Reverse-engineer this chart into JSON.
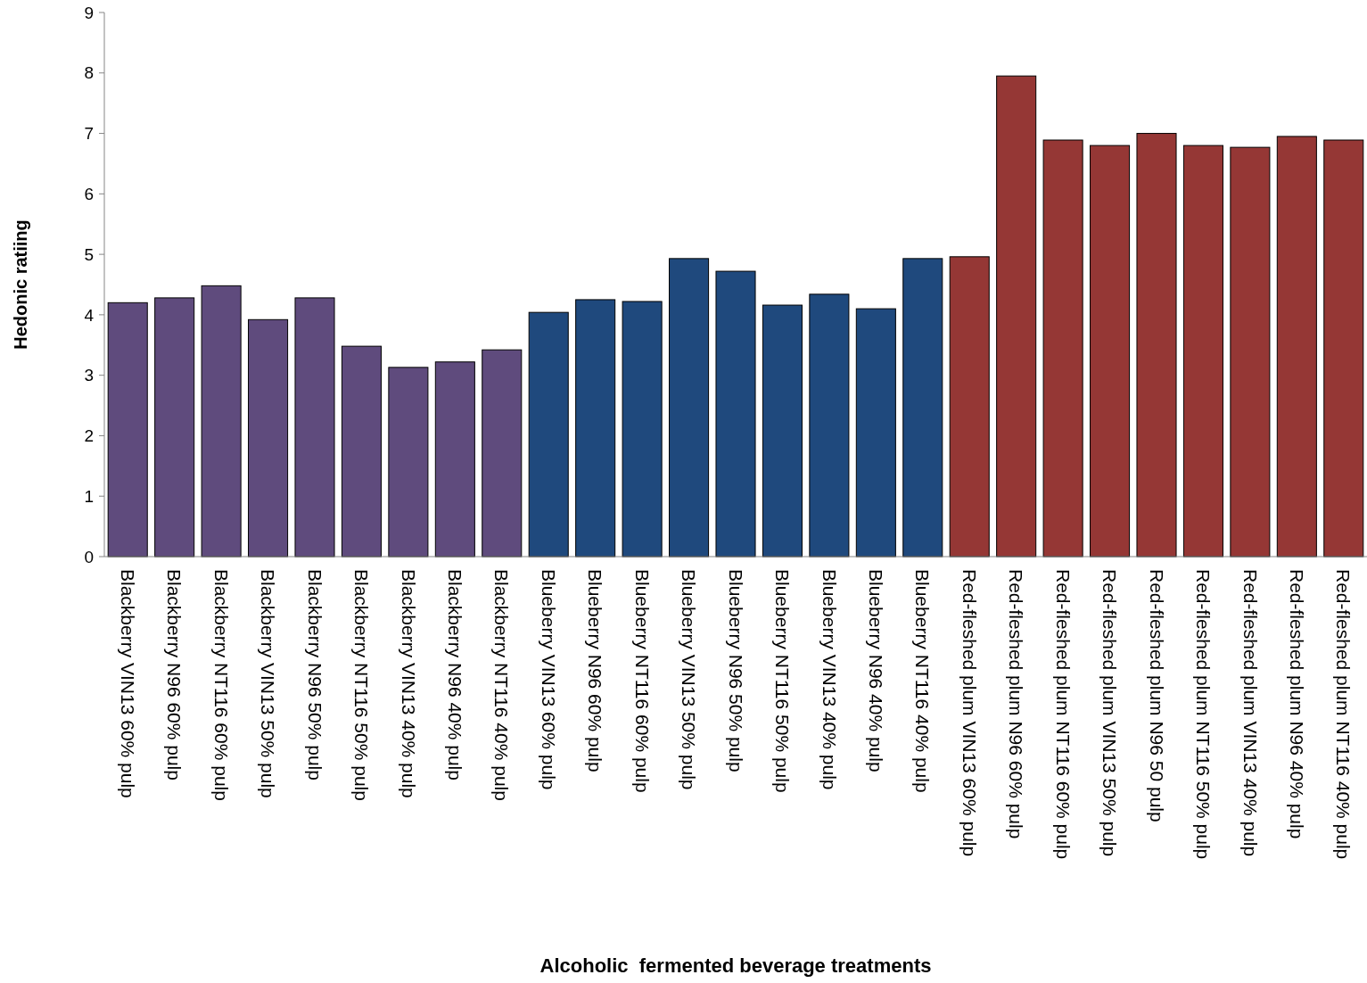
{
  "chart_data": {
    "type": "bar",
    "xlabel": "Alcoholic  fermented beverage treatments",
    "ylabel": "Hedonic ratiing",
    "categories": [
      "Blackberry VIN13 60% pulp",
      "Blackberry N96 60% pulp",
      "Blackberry NT116 60% pulp",
      "Blackberry VIN13 50% pulp",
      "Blackberry N96 50% pulp",
      "Blackberry NT116 50% pulp",
      "Blackberry VIN13 40% pulp",
      "Blackberry N96 40% pulp",
      "Blackberry NT116 40% pulp",
      "Blueberry VIN13 60% pulp",
      "Blueberry N96 60% pulp",
      "Blueberry NT116 60% pulp",
      "Blueberry VIN13 50% pulp",
      "Blueberry N96 50% pulp",
      "Blueberry NT116 50% pulp",
      "Blueberry VIN13 40% pulp",
      "Blueberry N96 40% pulp",
      "Blueberry NT116 40% pulp",
      "Red-fleshed plum VIN13 60% pulp",
      "Red-fleshed plum N96 60% pulp",
      "Red-fleshed plum NT116 60% pulp",
      "Red-fleshed plum VIN13 50% pulp",
      "Red-fleshed plum N96 50 pulp",
      "Red-fleshed plum NT116 50% pulp",
      "Red-fleshed plum VIN13 40% pulp",
      "Red-fleshed plum N96 40% pulp",
      "Red-fleshed plum NT116 40% pulp"
    ],
    "values": [
      4.2,
      4.28,
      4.48,
      3.92,
      4.28,
      3.48,
      3.13,
      3.22,
      3.42,
      4.04,
      4.25,
      4.22,
      4.93,
      4.72,
      4.16,
      4.34,
      4.1,
      4.93,
      4.96,
      7.95,
      6.89,
      6.8,
      7.0,
      6.8,
      6.77,
      6.95,
      6.89
    ],
    "colors": [
      "#5f4b7d",
      "#5f4b7d",
      "#5f4b7d",
      "#5f4b7d",
      "#5f4b7d",
      "#5f4b7d",
      "#5f4b7d",
      "#5f4b7d",
      "#5f4b7d",
      "#1f497d",
      "#1f497d",
      "#1f497d",
      "#1f497d",
      "#1f497d",
      "#1f497d",
      "#1f497d",
      "#1f497d",
      "#1f497d",
      "#953735",
      "#953735",
      "#953735",
      "#953735",
      "#953735",
      "#953735",
      "#953735",
      "#953735",
      "#953735"
    ],
    "ylim": [
      0,
      9
    ],
    "yticks": [
      0,
      1,
      2,
      3,
      4,
      5,
      6,
      7,
      8,
      9
    ],
    "grid": false
  }
}
